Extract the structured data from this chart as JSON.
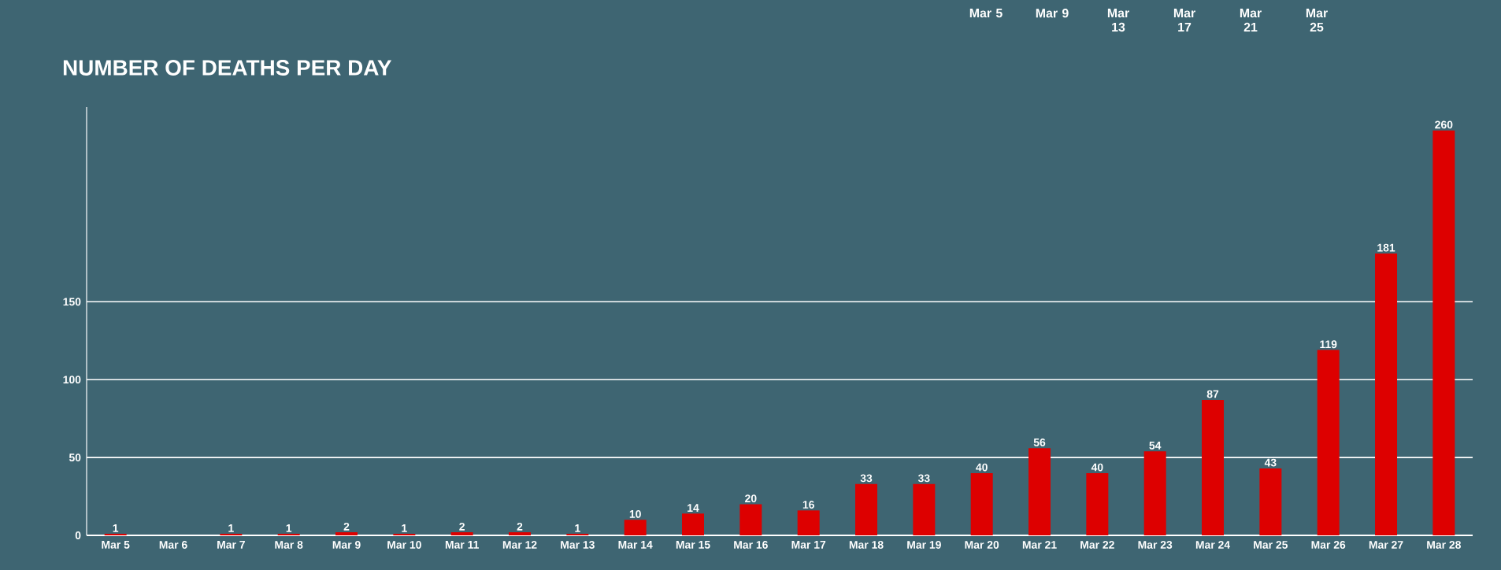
{
  "chart_data": {
    "type": "bar",
    "title": "NUMBER OF DEATHS PER DAY",
    "categories": [
      "Mar 5",
      "Mar 6",
      "Mar 7",
      "Mar 8",
      "Mar 9",
      "Mar 10",
      "Mar 11",
      "Mar 12",
      "Mar 13",
      "Mar 14",
      "Mar 15",
      "Mar 16",
      "Mar 17",
      "Mar 18",
      "Mar 19",
      "Mar 20",
      "Mar 21",
      "Mar 22",
      "Mar 23",
      "Mar 24",
      "Mar 25",
      "Mar 26",
      "Mar 27",
      "Mar 28"
    ],
    "values": [
      1,
      null,
      1,
      1,
      2,
      1,
      2,
      2,
      1,
      10,
      14,
      20,
      16,
      33,
      33,
      40,
      56,
      40,
      54,
      87,
      43,
      119,
      181,
      260
    ],
    "color": "#dd0000",
    "ylim": [
      0,
      275
    ],
    "yticks": [
      0,
      50,
      100,
      150
    ],
    "grid": "y",
    "data_labels": true,
    "annotations": [
      "Mar 5",
      "Mar 9",
      "Mar 13",
      "Mar 17",
      "Mar 21",
      "Mar 25"
    ]
  }
}
